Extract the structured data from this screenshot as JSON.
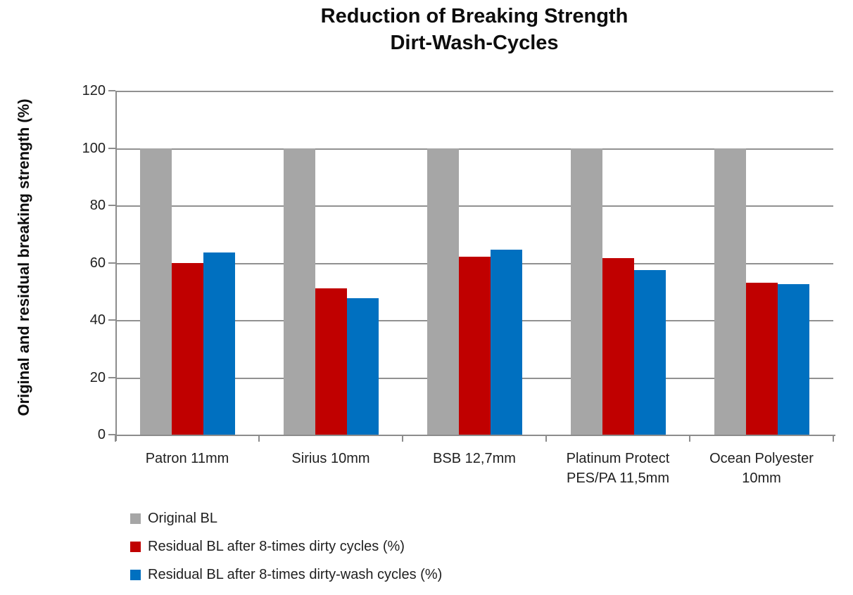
{
  "title": {
    "line1": "Reduction of Breaking Strength",
    "line2": "Dirt-Wash-Cycles"
  },
  "chart_data": {
    "type": "bar",
    "title": "Reduction of Breaking Strength Dirt-Wash-Cycles",
    "xlabel": "",
    "ylabel": "Original and residual breaking strength (%)",
    "ylim": [
      0,
      120
    ],
    "ytick_step": 20,
    "grid": true,
    "legend_position": "bottom-left",
    "categories": [
      "Patron 11mm",
      "Sirius 10mm",
      "BSB 12,7mm",
      "Platinum Protect PES/PA 11,5mm",
      "Ocean Polyester 10mm"
    ],
    "series": [
      {
        "name": "Original BL",
        "color": "#A6A6A6",
        "values": [
          100,
          100,
          100,
          100,
          100
        ]
      },
      {
        "name": "Residual BL after 8-times dirty cycles (%)",
        "color": "#C00000",
        "values": [
          60,
          51,
          62,
          61.5,
          53
        ]
      },
      {
        "name": "Residual BL after 8-times dirty-wash cycles (%)",
        "color": "#0070C0",
        "values": [
          63.5,
          47.5,
          64.5,
          57.5,
          52.5
        ]
      }
    ]
  },
  "colors": {
    "gridline": "#919191",
    "axis": "#8C8C8C",
    "text": "#1F1F1F",
    "background": "#FFFFFF"
  }
}
